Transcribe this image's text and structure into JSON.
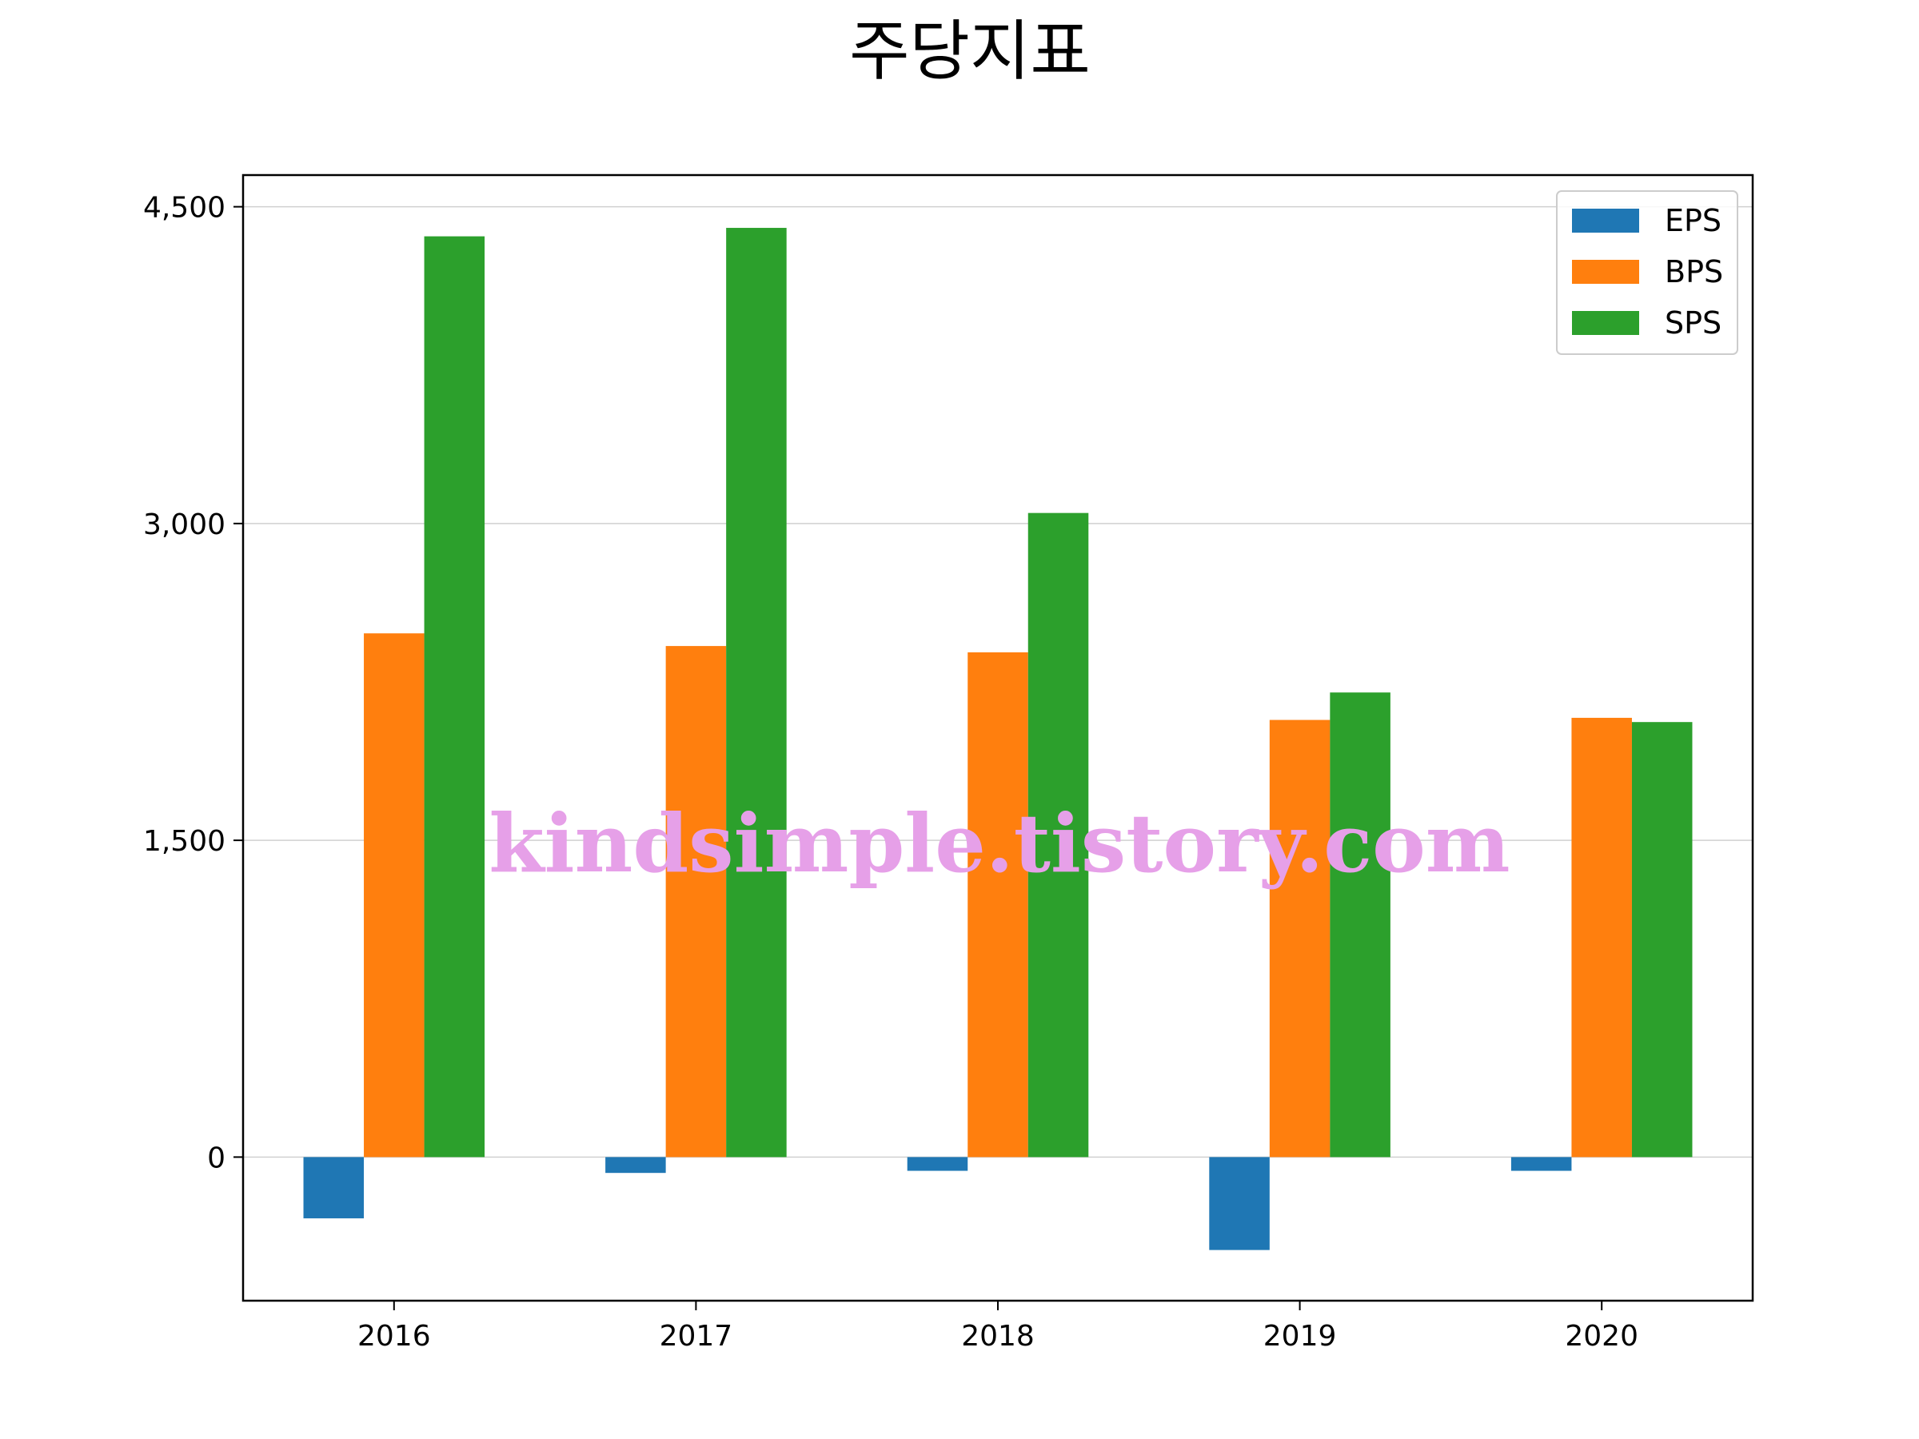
{
  "chart_data": {
    "type": "bar",
    "title": "주당지표",
    "xlabel": "",
    "ylabel": "",
    "categories": [
      "2016",
      "2017",
      "2018",
      "2019",
      "2020"
    ],
    "series": [
      {
        "name": "EPS",
        "color": "#1f77b4",
        "values": [
          -290,
          -75,
          -65,
          -440,
          -65
        ]
      },
      {
        "name": "BPS",
        "color": "#ff7f0e",
        "values": [
          2480,
          2420,
          2390,
          2070,
          2080
        ]
      },
      {
        "name": "SPS",
        "color": "#2ca02c",
        "values": [
          4360,
          4400,
          3050,
          2200,
          2060
        ]
      }
    ],
    "yticks": [
      0,
      1500,
      3000,
      4500
    ],
    "ytick_labels": [
      "0",
      "1,500",
      "3,000",
      "4,500"
    ],
    "ylim": [
      -680,
      4650
    ],
    "grid": "horizontal",
    "legend_position": "top-right"
  },
  "watermark": "kindsimple.tistory.com"
}
